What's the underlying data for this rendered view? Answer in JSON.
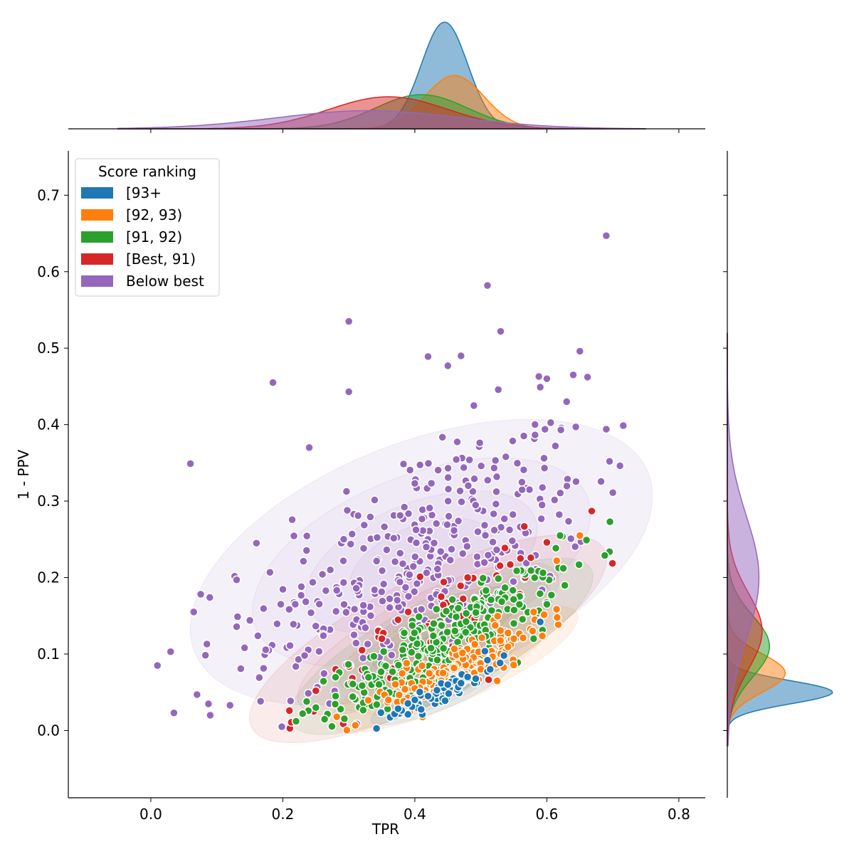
{
  "chart_data": {
    "type": "scatter",
    "title": "",
    "xlabel": "TPR",
    "ylabel": "1 - PPV",
    "xlim": [
      -0.125,
      0.84
    ],
    "ylim": [
      -0.088,
      0.758
    ],
    "x_ticks": [
      0.0,
      0.2,
      0.4,
      0.6,
      0.8
    ],
    "x_tick_labels": [
      "0.0",
      "0.2",
      "0.4",
      "0.6",
      "0.8"
    ],
    "y_ticks": [
      0.0,
      0.1,
      0.2,
      0.3,
      0.4,
      0.5,
      0.6,
      0.7
    ],
    "y_tick_labels": [
      "0.0",
      "0.1",
      "0.2",
      "0.3",
      "0.4",
      "0.5",
      "0.6",
      "0.7"
    ],
    "grid": false,
    "legend": {
      "title": "Score ranking",
      "placement": "top-left"
    },
    "marginals": {
      "top": "kde of TPR per group",
      "right": "kde of 1 - PPV per group"
    },
    "series": [
      {
        "name": "[93+",
        "color": "#1f77b4",
        "center": [
          0.44,
          0.05
        ],
        "spread": [
          0.04,
          0.018
        ],
        "corr": 0.9,
        "n": 60,
        "kde_x": {
          "mu": 0.445,
          "sd": 0.035,
          "peak": 1.0
        },
        "kde_y": {
          "mu": 0.05,
          "sd": 0.015,
          "peak": 1.0
        },
        "points": [
          [
            0.59,
            0.142
          ],
          [
            0.535,
            0.098
          ],
          [
            0.51,
            0.092
          ],
          [
            0.48,
            0.07
          ],
          [
            0.45,
            0.06
          ],
          [
            0.42,
            0.045
          ],
          [
            0.4,
            0.04
          ],
          [
            0.47,
            0.062
          ]
        ]
      },
      {
        "name": "[92, 93)",
        "color": "#ff7f0e",
        "center": [
          0.46,
          0.08
        ],
        "spread": [
          0.07,
          0.035
        ],
        "corr": 0.88,
        "n": 140,
        "kde_x": {
          "mu": 0.46,
          "sd": 0.045,
          "peak": 0.5
        },
        "kde_y": {
          "mu": 0.075,
          "sd": 0.025,
          "peak": 0.55
        },
        "points": [
          [
            0.65,
            0.255
          ],
          [
            0.615,
            0.222
          ],
          [
            0.58,
            0.155
          ],
          [
            0.55,
            0.12
          ],
          [
            0.53,
            0.1
          ],
          [
            0.5,
            0.08
          ],
          [
            0.47,
            0.075
          ],
          [
            0.44,
            0.065
          ],
          [
            0.4,
            0.055
          ],
          [
            0.36,
            0.04
          ]
        ]
      },
      {
        "name": "[91, 92)",
        "color": "#2ca02c",
        "center": [
          0.44,
          0.11
        ],
        "spread": [
          0.085,
          0.05
        ],
        "corr": 0.85,
        "n": 300,
        "kde_x": {
          "mu": 0.41,
          "sd": 0.07,
          "peak": 0.32
        },
        "kde_y": {
          "mu": 0.11,
          "sd": 0.04,
          "peak": 0.4
        },
        "points": [
          [
            0.66,
            0.249
          ],
          [
            0.625,
            0.212
          ],
          [
            0.62,
            0.255
          ],
          [
            0.6,
            0.165
          ],
          [
            0.58,
            0.12
          ],
          [
            0.55,
            0.14
          ],
          [
            0.22,
            0.012
          ],
          [
            0.23,
            0.022
          ],
          [
            0.25,
            0.03
          ],
          [
            0.28,
            0.045
          ]
        ]
      },
      {
        "name": "[Best, 91)",
        "color": "#d62728",
        "center": [
          0.42,
          0.12
        ],
        "spread": [
          0.1,
          0.06
        ],
        "corr": 0.82,
        "n": 60,
        "kde_x": {
          "mu": 0.36,
          "sd": 0.09,
          "peak": 0.3
        },
        "kde_y": {
          "mu": 0.13,
          "sd": 0.05,
          "peak": 0.33
        },
        "points": [
          [
            0.668,
            0.287
          ],
          [
            0.21,
            0.026
          ],
          [
            0.25,
            0.052
          ],
          [
            0.28,
            0.08
          ],
          [
            0.32,
            0.105
          ],
          [
            0.39,
            0.155
          ],
          [
            0.48,
            0.2
          ],
          [
            0.56,
            0.225
          ],
          [
            0.6,
            0.246
          ],
          [
            0.35,
            0.12
          ],
          [
            0.44,
            0.175
          ]
        ]
      },
      {
        "name": "Below best",
        "color": "#9467bd",
        "center": [
          0.41,
          0.22
        ],
        "spread": [
          0.13,
          0.09
        ],
        "corr": 0.55,
        "n": 380,
        "kde_x": {
          "mu": 0.33,
          "sd": 0.14,
          "peak": 0.17
        },
        "kde_y": {
          "mu": 0.2,
          "sd": 0.08,
          "peak": 0.3
        },
        "points": [
          [
            0.69,
            0.647
          ],
          [
            0.51,
            0.582
          ],
          [
            0.3,
            0.535
          ],
          [
            0.53,
            0.522
          ],
          [
            0.65,
            0.496
          ],
          [
            0.185,
            0.455
          ],
          [
            0.06,
            0.349
          ],
          [
            0.01,
            0.085
          ],
          [
            0.035,
            0.023
          ],
          [
            0.09,
            0.02
          ],
          [
            0.12,
            0.033
          ],
          [
            0.69,
            0.394
          ],
          [
            0.695,
            0.352
          ],
          [
            0.7,
            0.311
          ],
          [
            0.24,
            0.37
          ],
          [
            0.3,
            0.443
          ],
          [
            0.45,
            0.477
          ],
          [
            0.47,
            0.49
          ],
          [
            0.42,
            0.489
          ],
          [
            0.59,
            0.449
          ],
          [
            0.6,
            0.46
          ],
          [
            0.64,
            0.465
          ],
          [
            0.63,
            0.43
          ],
          [
            0.03,
            0.103
          ],
          [
            0.065,
            0.155
          ],
          [
            0.07,
            0.047
          ],
          [
            0.085,
            0.113
          ],
          [
            0.16,
            0.245
          ],
          [
            0.13,
            0.197
          ],
          [
            0.15,
            0.144
          ]
        ]
      }
    ]
  }
}
